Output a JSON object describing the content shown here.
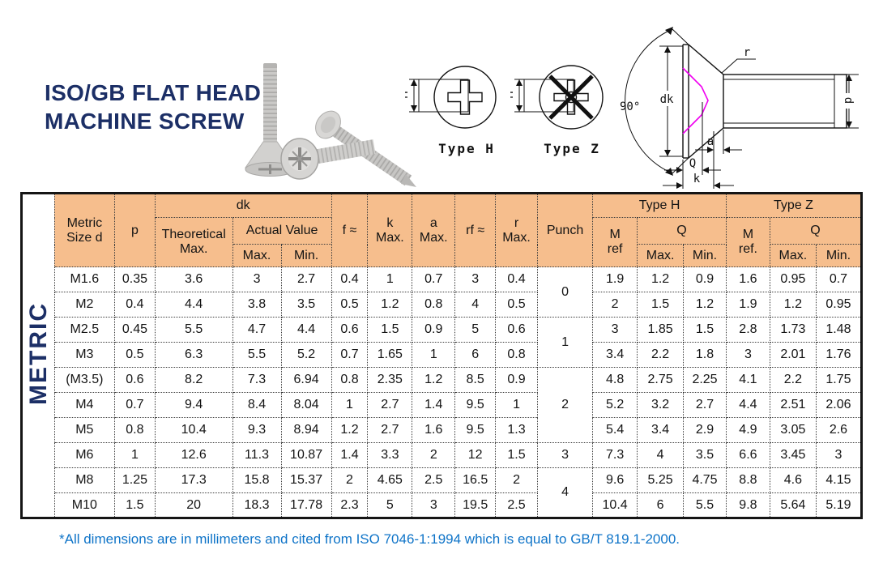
{
  "header": {
    "title_line1": "ISO/GB FLAT HEAD",
    "title_line2": "MACHINE SCREW",
    "type_h_label": "Type H",
    "type_z_label": "Type Z",
    "m_dim_label": "M",
    "drawing": {
      "angle_label": "90°",
      "dk_label": "dk",
      "r_label": "r",
      "a_label": "a",
      "q_label": "Q",
      "k_label": "k",
      "d_label": "d"
    }
  },
  "table": {
    "side_label": "METRIC",
    "columns": {
      "metric_size": "Metric\nSize d",
      "p": "p",
      "dk": "dk",
      "theoretical_max": "Theoretical\nMax.",
      "actual_value": "Actual Value",
      "max": "Max.",
      "min": "Min.",
      "f": "f ≈",
      "k_max": "k\nMax.",
      "a_max": "a\nMax.",
      "rf": "rf ≈",
      "r_max": "r\nMax.",
      "punch": "Punch",
      "type_h": "Type H",
      "type_z": "Type Z",
      "m_ref_h": "M\nref",
      "m_ref_z": "M\nref.",
      "q": "Q"
    },
    "rows": [
      {
        "size": "M1.6",
        "p": "0.35",
        "dk_theo": "3.6",
        "dk_max": "3",
        "dk_min": "2.7",
        "f": "0.4",
        "k": "1",
        "a": "0.7",
        "rf": "3",
        "r": "0.4",
        "punch": "0",
        "punch_span": 2,
        "th_m": "1.9",
        "th_q_max": "1.2",
        "th_q_min": "0.9",
        "tz_m": "1.6",
        "tz_q_max": "0.95",
        "tz_q_min": "0.7"
      },
      {
        "size": "M2",
        "p": "0.4",
        "dk_theo": "4.4",
        "dk_max": "3.8",
        "dk_min": "3.5",
        "f": "0.5",
        "k": "1.2",
        "a": "0.8",
        "rf": "4",
        "r": "0.5",
        "th_m": "2",
        "th_q_max": "1.5",
        "th_q_min": "1.2",
        "tz_m": "1.9",
        "tz_q_max": "1.2",
        "tz_q_min": "0.95"
      },
      {
        "size": "M2.5",
        "p": "0.45",
        "dk_theo": "5.5",
        "dk_max": "4.7",
        "dk_min": "4.4",
        "f": "0.6",
        "k": "1.5",
        "a": "0.9",
        "rf": "5",
        "r": "0.6",
        "punch": "1",
        "punch_span": 2,
        "th_m": "3",
        "th_q_max": "1.85",
        "th_q_min": "1.5",
        "tz_m": "2.8",
        "tz_q_max": "1.73",
        "tz_q_min": "1.48"
      },
      {
        "size": "M3",
        "p": "0.5",
        "dk_theo": "6.3",
        "dk_max": "5.5",
        "dk_min": "5.2",
        "f": "0.7",
        "k": "1.65",
        "a": "1",
        "rf": "6",
        "r": "0.8",
        "th_m": "3.4",
        "th_q_max": "2.2",
        "th_q_min": "1.8",
        "tz_m": "3",
        "tz_q_max": "2.01",
        "tz_q_min": "1.76"
      },
      {
        "size": "(M3.5)",
        "p": "0.6",
        "dk_theo": "8.2",
        "dk_max": "7.3",
        "dk_min": "6.94",
        "f": "0.8",
        "k": "2.35",
        "a": "1.2",
        "rf": "8.5",
        "r": "0.9",
        "punch": "2",
        "punch_span": 3,
        "th_m": "4.8",
        "th_q_max": "2.75",
        "th_q_min": "2.25",
        "tz_m": "4.1",
        "tz_q_max": "2.2",
        "tz_q_min": "1.75"
      },
      {
        "size": "M4",
        "p": "0.7",
        "dk_theo": "9.4",
        "dk_max": "8.4",
        "dk_min": "8.04",
        "f": "1",
        "k": "2.7",
        "a": "1.4",
        "rf": "9.5",
        "r": "1",
        "th_m": "5.2",
        "th_q_max": "3.2",
        "th_q_min": "2.7",
        "tz_m": "4.4",
        "tz_q_max": "2.51",
        "tz_q_min": "2.06"
      },
      {
        "size": "M5",
        "p": "0.8",
        "dk_theo": "10.4",
        "dk_max": "9.3",
        "dk_min": "8.94",
        "f": "1.2",
        "k": "2.7",
        "a": "1.6",
        "rf": "9.5",
        "r": "1.3",
        "th_m": "5.4",
        "th_q_max": "3.4",
        "th_q_min": "2.9",
        "tz_m": "4.9",
        "tz_q_max": "3.05",
        "tz_q_min": "2.6"
      },
      {
        "size": "M6",
        "p": "1",
        "dk_theo": "12.6",
        "dk_max": "11.3",
        "dk_min": "10.87",
        "f": "1.4",
        "k": "3.3",
        "a": "2",
        "rf": "12",
        "r": "1.5",
        "punch": "3",
        "punch_span": 1,
        "th_m": "7.3",
        "th_q_max": "4",
        "th_q_min": "3.5",
        "tz_m": "6.6",
        "tz_q_max": "3.45",
        "tz_q_min": "3"
      },
      {
        "size": "M8",
        "p": "1.25",
        "dk_theo": "17.3",
        "dk_max": "15.8",
        "dk_min": "15.37",
        "f": "2",
        "k": "4.65",
        "a": "2.5",
        "rf": "16.5",
        "r": "2",
        "punch": "4",
        "punch_span": 2,
        "th_m": "9.6",
        "th_q_max": "5.25",
        "th_q_min": "4.75",
        "tz_m": "8.8",
        "tz_q_max": "4.6",
        "tz_q_min": "4.15"
      },
      {
        "size": "M10",
        "p": "1.5",
        "dk_theo": "20",
        "dk_max": "18.3",
        "dk_min": "17.78",
        "f": "2.3",
        "k": "5",
        "a": "3",
        "rf": "19.5",
        "r": "2.5",
        "th_m": "10.4",
        "th_q_max": "6",
        "th_q_min": "5.5",
        "tz_m": "9.8",
        "tz_q_max": "5.64",
        "tz_q_min": "5.19"
      }
    ]
  },
  "footnote": "*All dimensions are in millimeters and cited from ISO 7046-1:1994 which is equal to GB/T 819.1-2000.",
  "colors": {
    "header_bg": "#F6BE8D",
    "title_navy": "#1C2F66",
    "footnote_blue": "#0F74C8",
    "recess_magenta": "#F000F0"
  }
}
